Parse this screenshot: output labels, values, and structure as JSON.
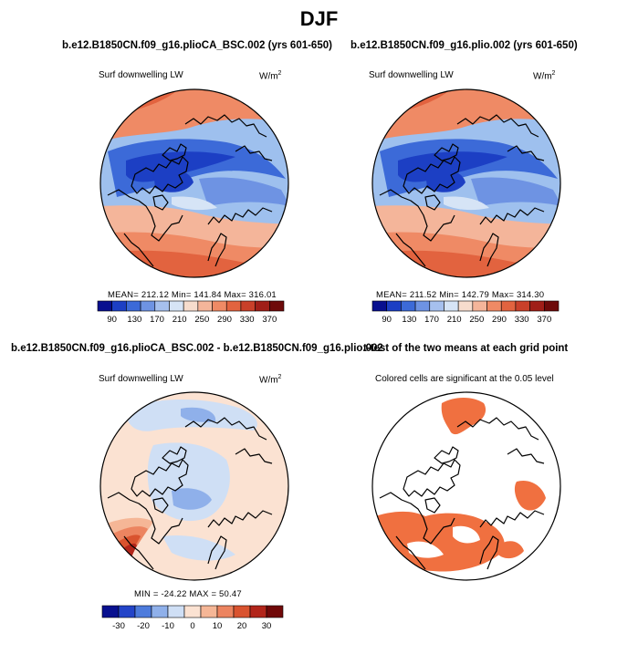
{
  "title": "DJF",
  "panels": [
    {
      "title": "b.e12.B1850CN.f09_g16.plioCA_BSC.002 (yrs 601-650)",
      "left_label": "Surf downwelling LW",
      "unit": "W/m",
      "unit_sup": "2",
      "stats": "MEAN= 212.12   Min= 141.84   Max= 316.01",
      "colorbar_labels": [
        "90",
        "130",
        "170",
        "210",
        "250",
        "290",
        "330",
        "370"
      ]
    },
    {
      "title": "b.e12.B1850CN.f09_g16.plio.002 (yrs 601-650)",
      "left_label": "Surf downwelling LW",
      "unit": "W/m",
      "unit_sup": "2",
      "stats": "MEAN= 211.52   Min= 142.79   Max= 314.30",
      "colorbar_labels": [
        "90",
        "130",
        "170",
        "210",
        "250",
        "290",
        "330",
        "370"
      ]
    },
    {
      "title": "b.e12.B1850CN.f09_g16.plioCA_BSC.002 - b.e12.B1850CN.f09_g16.plio.002",
      "left_label": "Surf downwelling LW",
      "unit": "W/m",
      "unit_sup": "2",
      "stats": "MIN = -24.22  MAX =   50.47",
      "colorbar_labels": [
        "-30",
        "-20",
        "-10",
        "0",
        "10",
        "20",
        "30"
      ]
    },
    {
      "title": "t-test of the two means at each grid point",
      "left_label": "Colored cells are significant at the 0.05 level"
    }
  ],
  "colors": {
    "colorbar_abs": [
      "#08108f",
      "#1c3fc4",
      "#3c6ad8",
      "#6e93e3",
      "#a6c0ee",
      "#d6e4f6",
      "#f6dccd",
      "#f4b59a",
      "#ef8a65",
      "#e2633f",
      "#c9402a",
      "#a01e18",
      "#6e0a0a"
    ],
    "colorbar_diff": [
      "#08108f",
      "#2344c8",
      "#4d7bdc",
      "#8fb0ea",
      "#cfdff5",
      "#fbe2d2",
      "#f5b696",
      "#ec8460",
      "#d9532f",
      "#b2251a",
      "#700808"
    ],
    "significant": "#f07040"
  }
}
